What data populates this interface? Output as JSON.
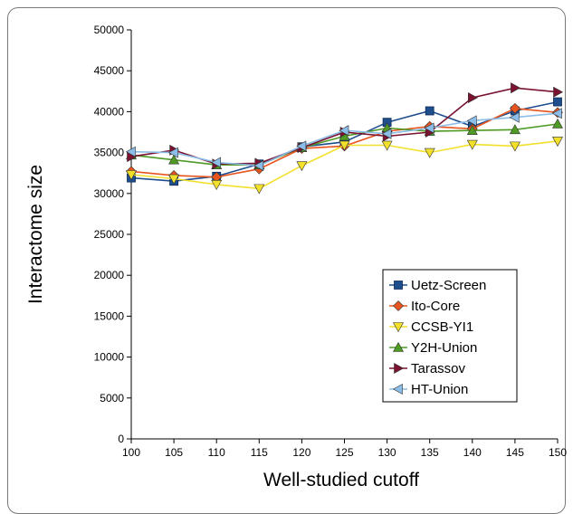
{
  "chart_data": {
    "type": "line",
    "xlabel": "Well-studied cutoff",
    "ylabel": "Interactome size",
    "x": [
      100,
      105,
      110,
      115,
      120,
      125,
      130,
      135,
      140,
      145,
      150
    ],
    "xlim": [
      100,
      150
    ],
    "ylim": [
      0,
      50000
    ],
    "yticks": [
      0,
      5000,
      10000,
      15000,
      20000,
      25000,
      30000,
      35000,
      40000,
      45000,
      50000
    ],
    "grid": false,
    "legend_position": "right-middle",
    "series": [
      {
        "name": "Uetz-Screen",
        "color": "#1f4e8c",
        "marker": "square",
        "values": [
          31900,
          31500,
          32100,
          33600,
          35700,
          36300,
          38700,
          40100,
          38200,
          40100,
          41200
        ]
      },
      {
        "name": "Ito-Core",
        "color": "#e8541e",
        "marker": "diamond",
        "values": [
          32700,
          32200,
          32000,
          33000,
          35500,
          35800,
          37600,
          38200,
          37900,
          40400,
          39900
        ]
      },
      {
        "name": "CCSB-YI1",
        "color": "#f2e02a",
        "marker": "triangle-down",
        "values": [
          32300,
          31800,
          31100,
          30600,
          33400,
          35900,
          35900,
          35000,
          36000,
          35800,
          36400
        ]
      },
      {
        "name": "Y2H-Union",
        "color": "#4e9a24",
        "marker": "triangle-up",
        "values": [
          34700,
          34100,
          33500,
          33500,
          35600,
          37000,
          38000,
          37600,
          37700,
          37800,
          38500
        ]
      },
      {
        "name": "Tarassov",
        "color": "#7a1230",
        "marker": "triangle-right",
        "values": [
          34500,
          35300,
          33600,
          33700,
          35600,
          37500,
          37000,
          37500,
          41700,
          42900,
          42400
        ]
      },
      {
        "name": "HT-Union",
        "color": "#8cbde8",
        "marker": "triangle-left",
        "values": [
          35100,
          35000,
          33800,
          33400,
          35800,
          37700,
          37300,
          38000,
          38900,
          39300,
          39800
        ]
      }
    ]
  }
}
